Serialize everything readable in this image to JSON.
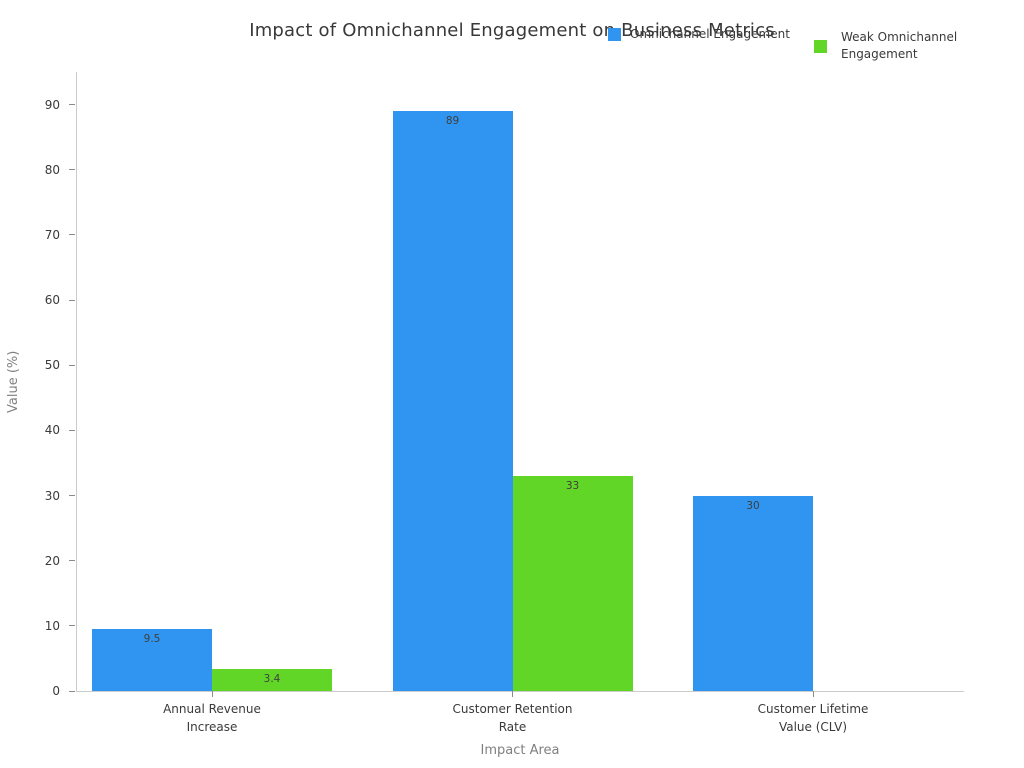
{
  "title": "Impact of Omnichannel Engagement on Business Metrics",
  "legend": {
    "position": "top-right",
    "items": [
      {
        "label": "Omnichannel Engagement",
        "color": "#3095F1"
      },
      {
        "label": "Weak Omnichannel\nEngagement",
        "color": "#62D626"
      }
    ]
  },
  "chart_data": {
    "type": "bar",
    "title": "Impact of Omnichannel Engagement on Business Metrics",
    "xlabel": "Impact Area",
    "ylabel": "Value (%)",
    "categories": [
      "Annual Revenue\nIncrease",
      "Customer Retention\nRate",
      "Customer Lifetime\nValue (CLV)"
    ],
    "series": [
      {
        "name": "Omnichannel Engagement",
        "color": "#3095F1",
        "values": [
          9.5,
          89,
          30
        ],
        "value_labels": [
          "9.5",
          "89",
          "30"
        ]
      },
      {
        "name": "Weak Omnichannel Engagement",
        "color": "#62D626",
        "values": [
          3.4,
          33,
          0
        ],
        "value_labels": [
          "3.4",
          "33",
          ""
        ]
      }
    ],
    "y_ticks": [
      0,
      10,
      20,
      30,
      40,
      50,
      60,
      70,
      80,
      90
    ],
    "y_tick_labels": [
      "0",
      "10",
      "20",
      "30",
      "40",
      "50",
      "60",
      "70",
      "80",
      "90"
    ],
    "ylim": [
      0,
      95
    ],
    "grid": false,
    "legend_position": "top-right"
  }
}
